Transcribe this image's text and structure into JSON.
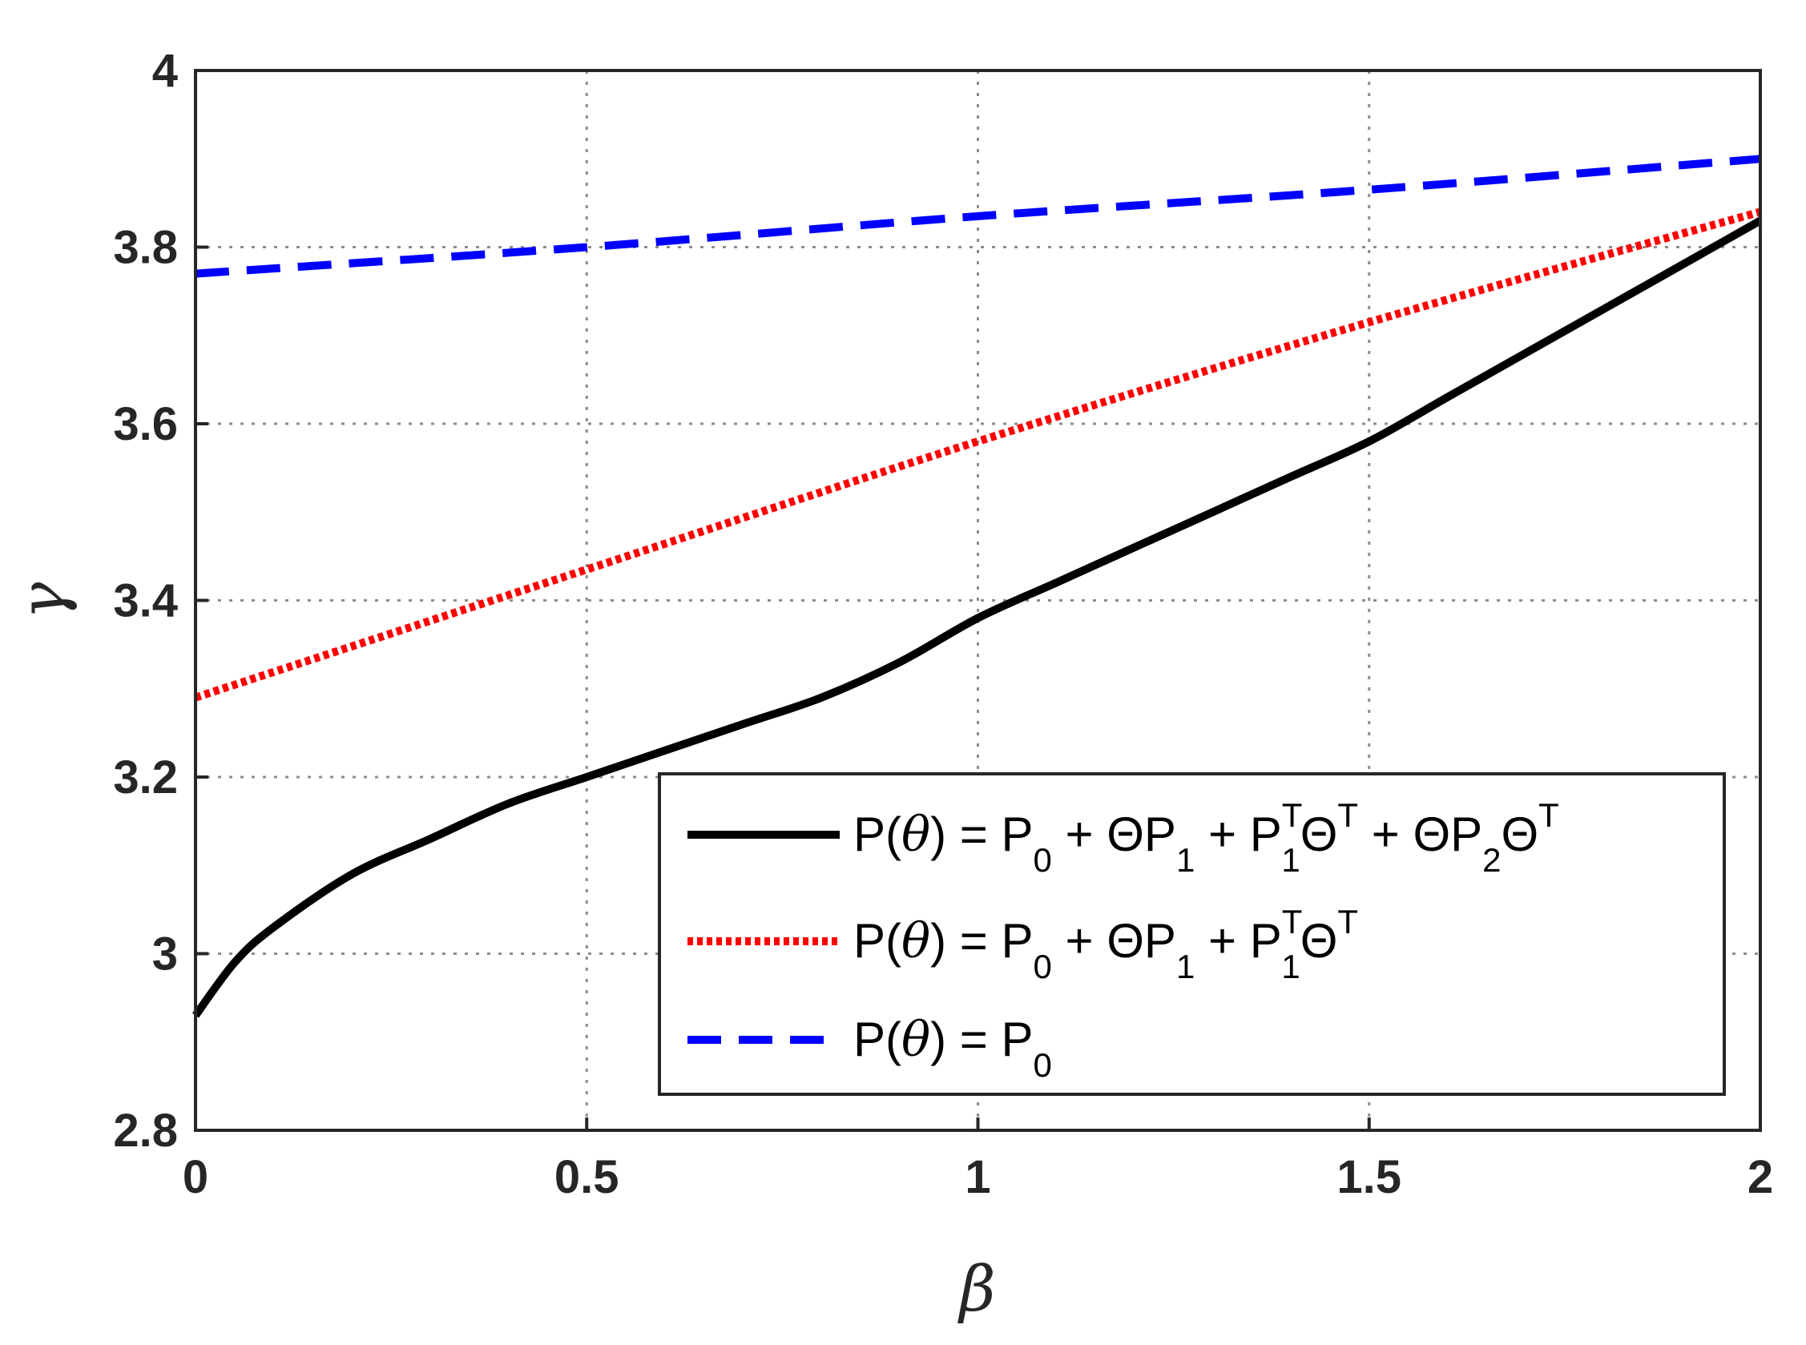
{
  "chart_data": {
    "type": "line",
    "title": "",
    "xlabel": "β",
    "ylabel": "γ",
    "xlim": [
      0,
      2
    ],
    "ylim": [
      2.8,
      4
    ],
    "xticks": [
      0,
      0.5,
      1,
      1.5,
      2
    ],
    "xtick_labels": [
      "0",
      "0.5",
      "1",
      "1.5",
      "2"
    ],
    "yticks": [
      2.8,
      3,
      3.2,
      3.4,
      3.6,
      3.8,
      4
    ],
    "ytick_labels": [
      "2.8",
      "3",
      "3.2",
      "3.4",
      "3.6",
      "3.8",
      "4"
    ],
    "grid": true,
    "legend_position": "bottom-right",
    "series": [
      {
        "name": "P(θ) = P0 + ΘP1 + P1TΘT + ΘP2ΘT",
        "color": "#000000",
        "style": "solid",
        "x": [
          0,
          0.05,
          0.1,
          0.2,
          0.3,
          0.4,
          0.5,
          0.6,
          0.7,
          0.8,
          0.9,
          1.0,
          1.1,
          1.2,
          1.3,
          1.4,
          1.5,
          1.6,
          1.7,
          1.8,
          1.9,
          2.0
        ],
        "y": [
          2.93,
          2.99,
          3.03,
          3.09,
          3.13,
          3.17,
          3.2,
          3.23,
          3.26,
          3.29,
          3.33,
          3.38,
          3.42,
          3.46,
          3.5,
          3.54,
          3.58,
          3.63,
          3.68,
          3.73,
          3.78,
          3.83
        ]
      },
      {
        "name": "P(θ) = P0 + ΘP1 + P1TΘT",
        "color": "#ff0000",
        "style": "dotted",
        "x": [
          0,
          0.5,
          1.0,
          1.5,
          2.0
        ],
        "y": [
          3.29,
          3.435,
          3.58,
          3.715,
          3.84
        ]
      },
      {
        "name": "P(θ) = P0",
        "color": "#0000ff",
        "style": "dashed",
        "x": [
          0,
          0.5,
          1.0,
          1.5,
          2.0
        ],
        "y": [
          3.77,
          3.8,
          3.835,
          3.865,
          3.9
        ]
      }
    ]
  }
}
